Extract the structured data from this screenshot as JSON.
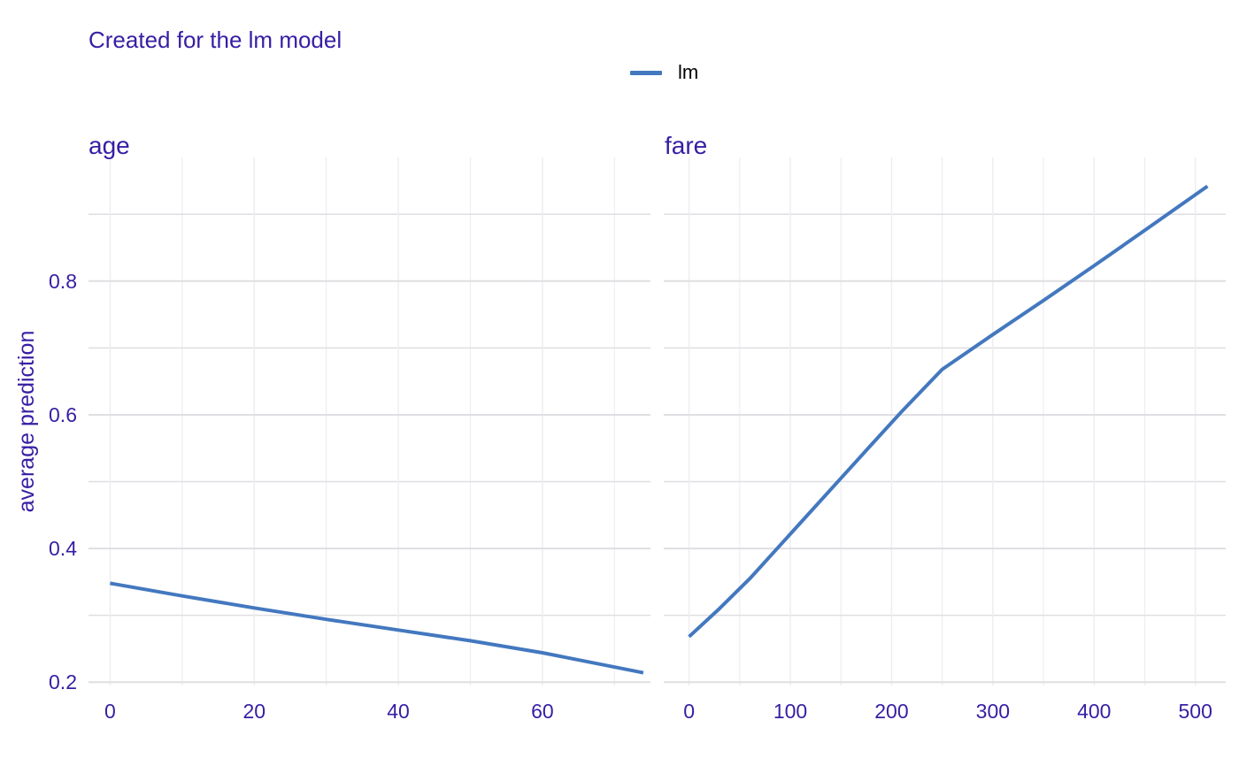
{
  "subtitle": "Created for the lm model",
  "legend": {
    "label": "lm",
    "color": "#4378bf"
  },
  "colors": {
    "text": "#371ea3",
    "line": "#4378bf",
    "grid_major": "#dfdfe3",
    "grid_minor": "#eeeef1"
  },
  "chart_data": [
    {
      "type": "line",
      "panel": "age",
      "ylabel": "average prediction",
      "xlim": [
        -3,
        75
      ],
      "ylim": [
        0.195,
        0.985
      ],
      "x_ticks": [
        0,
        20,
        40,
        60
      ],
      "y_ticks": [
        0.2,
        0.4,
        0.6,
        0.8
      ],
      "grid": true,
      "series": [
        {
          "name": "lm",
          "x": [
            0,
            10,
            20,
            30,
            40,
            50,
            60,
            74
          ],
          "y": [
            0.348,
            0.329,
            0.311,
            0.294,
            0.278,
            0.262,
            0.244,
            0.214
          ]
        }
      ]
    },
    {
      "type": "line",
      "panel": "fare",
      "xlim": [
        -25,
        530
      ],
      "ylim": [
        0.195,
        0.985
      ],
      "x_ticks": [
        0,
        100,
        200,
        300,
        400,
        500
      ],
      "y_ticks": [
        0.2,
        0.4,
        0.6,
        0.8
      ],
      "grid": true,
      "series": [
        {
          "name": "lm",
          "x": [
            0,
            30,
            60,
            90,
            120,
            150,
            180,
            210,
            250,
            300,
            350,
            400,
            450,
            512
          ],
          "y": [
            0.268,
            0.31,
            0.355,
            0.405,
            0.455,
            0.505,
            0.555,
            0.605,
            0.668,
            0.72,
            0.771,
            0.823,
            0.876,
            0.942
          ]
        }
      ]
    }
  ]
}
